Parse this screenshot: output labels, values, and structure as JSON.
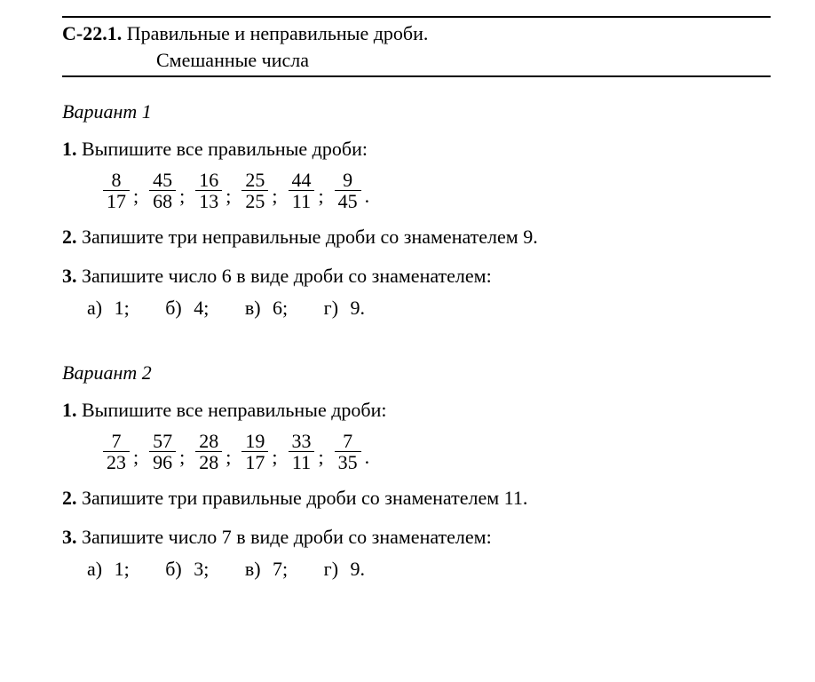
{
  "header": {
    "code": "С-22.1.",
    "title_line1": "Правильные и неправильные дроби.",
    "title_line2": "Смешанные числа"
  },
  "variant1": {
    "label": "Вариант 1",
    "task1": {
      "num": "1.",
      "text": "Выпишите все правильные дроби:",
      "fractions": [
        {
          "n": "8",
          "d": "17"
        },
        {
          "n": "45",
          "d": "68"
        },
        {
          "n": "16",
          "d": "13"
        },
        {
          "n": "25",
          "d": "25"
        },
        {
          "n": "44",
          "d": "11"
        },
        {
          "n": "9",
          "d": "45"
        }
      ],
      "sep": ";",
      "period": "."
    },
    "task2": {
      "num": "2.",
      "text": "Запишите три неправильные дроби со знаменателем 9."
    },
    "task3": {
      "num": "3.",
      "text": "Запишите число 6 в виде дроби со знаменателем:",
      "parts": {
        "a": "а) 1;",
        "b": "б) 4;",
        "v": "в) 6;",
        "g": "г) 9."
      }
    }
  },
  "variant2": {
    "label": "Вариант 2",
    "task1": {
      "num": "1.",
      "text": "Выпишите все неправильные дроби:",
      "fractions": [
        {
          "n": "7",
          "d": "23"
        },
        {
          "n": "57",
          "d": "96"
        },
        {
          "n": "28",
          "d": "28"
        },
        {
          "n": "19",
          "d": "17"
        },
        {
          "n": "33",
          "d": "11"
        },
        {
          "n": "7",
          "d": "35"
        }
      ],
      "sep": ";",
      "period": "."
    },
    "task2": {
      "num": "2.",
      "text": "Запишите три правильные дроби со знаменателем 11."
    },
    "task3": {
      "num": "3.",
      "text": "Запишите число 7 в виде дроби со знаменателем:",
      "parts": {
        "a": "а) 1;",
        "b": "б) 3;",
        "v": "в) 7;",
        "g": "г) 9."
      }
    }
  }
}
